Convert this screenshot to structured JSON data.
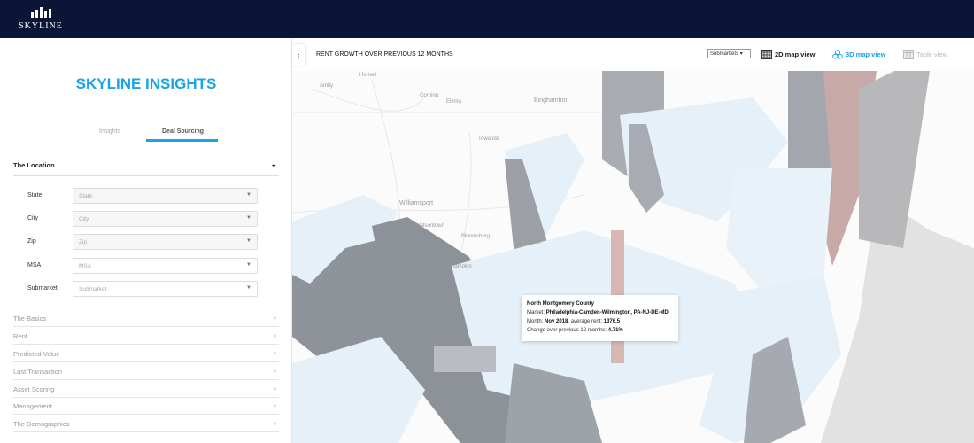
{
  "topbar": {
    "logo_text": "SKYLINE"
  },
  "sidebar": {
    "brand": "SKYLINE INSIGHTS",
    "tabs": [
      {
        "label": "Insights",
        "active": false
      },
      {
        "label": "Deal Sourcing",
        "active": true
      }
    ],
    "location": {
      "title": "The Location",
      "fields": [
        {
          "label": "State",
          "placeholder": "State"
        },
        {
          "label": "City",
          "placeholder": "City"
        },
        {
          "label": "Zip",
          "placeholder": "Zip"
        },
        {
          "label": "MSA",
          "placeholder": "MSA"
        },
        {
          "label": "Submarket",
          "placeholder": "Submarket"
        }
      ]
    },
    "sections": [
      "The Basics",
      "Rent",
      "Predicted Value",
      "Last Transaction",
      "Asset Scoring",
      "Management",
      "The Demographics"
    ]
  },
  "header": {
    "title": "RENT GROWTH OVER PREVIOUS 12 MONTHS",
    "level_select": "Submarkets",
    "views": [
      {
        "label": "2D map view",
        "state": "normal"
      },
      {
        "label": "3D map view",
        "state": "active"
      },
      {
        "label": "Table view",
        "state": "disabled"
      }
    ]
  },
  "map": {
    "places": [
      "Hornell",
      "Amity",
      "Corning",
      "Elmira",
      "Binghamton",
      "Towanda",
      "Williamsport",
      "Watsontown",
      "Bloomsburg",
      "Shamokin",
      "Hazleton"
    ],
    "tooltip": {
      "title": "North Montgomery County",
      "market_label": "Market:",
      "market": "Philadelphia-Camden-Wilmington, PA-NJ-DE-MD",
      "month_label": "Month:",
      "month": "Nov 2018",
      "rent_label": ", average rent:",
      "rent": "1376.5",
      "change_label": "Change over previous 12 months:",
      "change": "4.71%"
    }
  },
  "colors": {
    "accent": "#1aa3e8",
    "topbar": "#0b1636",
    "region_top": "#e6f0f8",
    "region_side": "#9ea3a9",
    "highlight": "#d9b8b4"
  }
}
